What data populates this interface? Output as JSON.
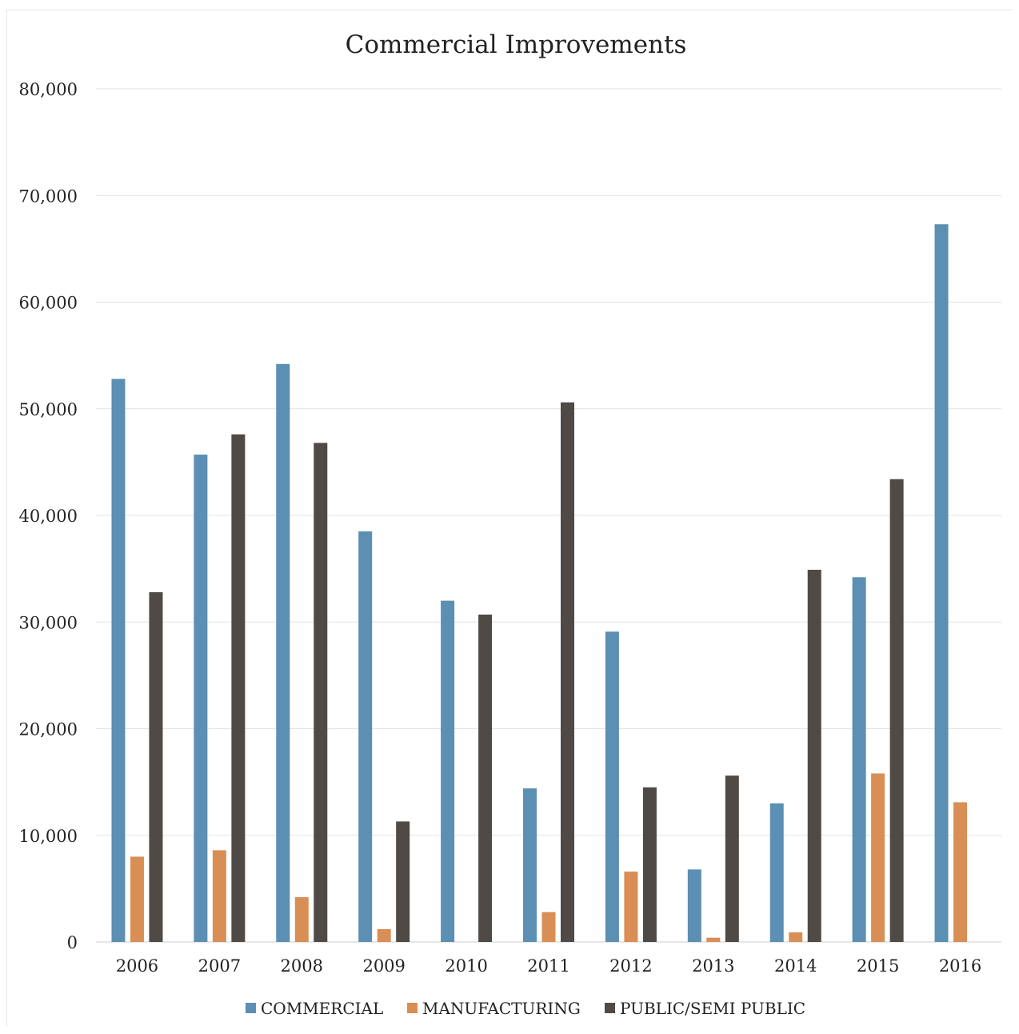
{
  "chart_data": {
    "type": "bar",
    "title": "Commercial Improvements",
    "xlabel": "",
    "ylabel": "",
    "ylim": [
      0,
      80000
    ],
    "yticks": [
      0,
      10000,
      20000,
      30000,
      40000,
      50000,
      60000,
      70000,
      80000
    ],
    "ytick_labels": [
      "0",
      "10,000",
      "20,000",
      "30,000",
      "40,000",
      "50,000",
      "60,000",
      "70,000",
      "80,000"
    ],
    "categories": [
      "2006",
      "2007",
      "2008",
      "2009",
      "2010",
      "2011",
      "2012",
      "2013",
      "2014",
      "2015",
      "2016"
    ],
    "series": [
      {
        "name": "COMMERCIAL",
        "color": "#5b8fb3",
        "values": [
          52800,
          45700,
          54200,
          38500,
          32000,
          14400,
          29100,
          6800,
          13000,
          34200,
          67300
        ]
      },
      {
        "name": "MANUFACTURING",
        "color": "#d98e55",
        "values": [
          8000,
          8600,
          4200,
          1200,
          0,
          2800,
          6600,
          400,
          900,
          15800,
          13100
        ]
      },
      {
        "name": "PUBLIC/SEMI PUBLIC",
        "color": "#4f4a46",
        "values": [
          32800,
          47600,
          46800,
          11300,
          30700,
          50600,
          14500,
          15600,
          34900,
          43400,
          0
        ]
      }
    ],
    "grid": true,
    "legend": "bottom"
  }
}
